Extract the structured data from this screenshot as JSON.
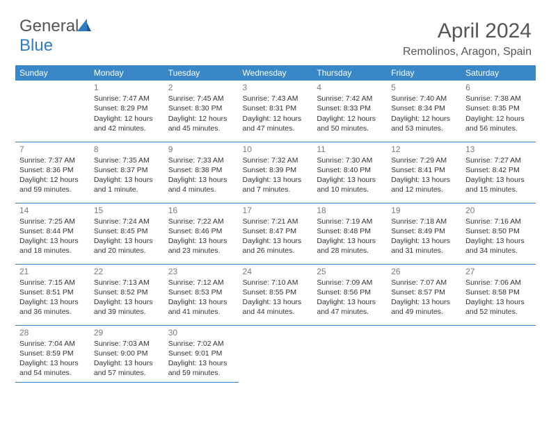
{
  "logo": {
    "text1": "General",
    "text2": "Blue"
  },
  "title": "April 2024",
  "subtitle": "Remolinos, Aragon, Spain",
  "header_bg": "#3a87c8",
  "border_color": "#2b7cc4",
  "days_of_week": [
    "Sunday",
    "Monday",
    "Tuesday",
    "Wednesday",
    "Thursday",
    "Friday",
    "Saturday"
  ],
  "weeks": [
    [
      null,
      {
        "n": "1",
        "a": "Sunrise: 7:47 AM",
        "b": "Sunset: 8:29 PM",
        "c": "Daylight: 12 hours and 42 minutes."
      },
      {
        "n": "2",
        "a": "Sunrise: 7:45 AM",
        "b": "Sunset: 8:30 PM",
        "c": "Daylight: 12 hours and 45 minutes."
      },
      {
        "n": "3",
        "a": "Sunrise: 7:43 AM",
        "b": "Sunset: 8:31 PM",
        "c": "Daylight: 12 hours and 47 minutes."
      },
      {
        "n": "4",
        "a": "Sunrise: 7:42 AM",
        "b": "Sunset: 8:33 PM",
        "c": "Daylight: 12 hours and 50 minutes."
      },
      {
        "n": "5",
        "a": "Sunrise: 7:40 AM",
        "b": "Sunset: 8:34 PM",
        "c": "Daylight: 12 hours and 53 minutes."
      },
      {
        "n": "6",
        "a": "Sunrise: 7:38 AM",
        "b": "Sunset: 8:35 PM",
        "c": "Daylight: 12 hours and 56 minutes."
      }
    ],
    [
      {
        "n": "7",
        "a": "Sunrise: 7:37 AM",
        "b": "Sunset: 8:36 PM",
        "c": "Daylight: 12 hours and 59 minutes."
      },
      {
        "n": "8",
        "a": "Sunrise: 7:35 AM",
        "b": "Sunset: 8:37 PM",
        "c": "Daylight: 13 hours and 1 minute."
      },
      {
        "n": "9",
        "a": "Sunrise: 7:33 AM",
        "b": "Sunset: 8:38 PM",
        "c": "Daylight: 13 hours and 4 minutes."
      },
      {
        "n": "10",
        "a": "Sunrise: 7:32 AM",
        "b": "Sunset: 8:39 PM",
        "c": "Daylight: 13 hours and 7 minutes."
      },
      {
        "n": "11",
        "a": "Sunrise: 7:30 AM",
        "b": "Sunset: 8:40 PM",
        "c": "Daylight: 13 hours and 10 minutes."
      },
      {
        "n": "12",
        "a": "Sunrise: 7:29 AM",
        "b": "Sunset: 8:41 PM",
        "c": "Daylight: 13 hours and 12 minutes."
      },
      {
        "n": "13",
        "a": "Sunrise: 7:27 AM",
        "b": "Sunset: 8:42 PM",
        "c": "Daylight: 13 hours and 15 minutes."
      }
    ],
    [
      {
        "n": "14",
        "a": "Sunrise: 7:25 AM",
        "b": "Sunset: 8:44 PM",
        "c": "Daylight: 13 hours and 18 minutes."
      },
      {
        "n": "15",
        "a": "Sunrise: 7:24 AM",
        "b": "Sunset: 8:45 PM",
        "c": "Daylight: 13 hours and 20 minutes."
      },
      {
        "n": "16",
        "a": "Sunrise: 7:22 AM",
        "b": "Sunset: 8:46 PM",
        "c": "Daylight: 13 hours and 23 minutes."
      },
      {
        "n": "17",
        "a": "Sunrise: 7:21 AM",
        "b": "Sunset: 8:47 PM",
        "c": "Daylight: 13 hours and 26 minutes."
      },
      {
        "n": "18",
        "a": "Sunrise: 7:19 AM",
        "b": "Sunset: 8:48 PM",
        "c": "Daylight: 13 hours and 28 minutes."
      },
      {
        "n": "19",
        "a": "Sunrise: 7:18 AM",
        "b": "Sunset: 8:49 PM",
        "c": "Daylight: 13 hours and 31 minutes."
      },
      {
        "n": "20",
        "a": "Sunrise: 7:16 AM",
        "b": "Sunset: 8:50 PM",
        "c": "Daylight: 13 hours and 34 minutes."
      }
    ],
    [
      {
        "n": "21",
        "a": "Sunrise: 7:15 AM",
        "b": "Sunset: 8:51 PM",
        "c": "Daylight: 13 hours and 36 minutes."
      },
      {
        "n": "22",
        "a": "Sunrise: 7:13 AM",
        "b": "Sunset: 8:52 PM",
        "c": "Daylight: 13 hours and 39 minutes."
      },
      {
        "n": "23",
        "a": "Sunrise: 7:12 AM",
        "b": "Sunset: 8:53 PM",
        "c": "Daylight: 13 hours and 41 minutes."
      },
      {
        "n": "24",
        "a": "Sunrise: 7:10 AM",
        "b": "Sunset: 8:55 PM",
        "c": "Daylight: 13 hours and 44 minutes."
      },
      {
        "n": "25",
        "a": "Sunrise: 7:09 AM",
        "b": "Sunset: 8:56 PM",
        "c": "Daylight: 13 hours and 47 minutes."
      },
      {
        "n": "26",
        "a": "Sunrise: 7:07 AM",
        "b": "Sunset: 8:57 PM",
        "c": "Daylight: 13 hours and 49 minutes."
      },
      {
        "n": "27",
        "a": "Sunrise: 7:06 AM",
        "b": "Sunset: 8:58 PM",
        "c": "Daylight: 13 hours and 52 minutes."
      }
    ],
    [
      {
        "n": "28",
        "a": "Sunrise: 7:04 AM",
        "b": "Sunset: 8:59 PM",
        "c": "Daylight: 13 hours and 54 minutes."
      },
      {
        "n": "29",
        "a": "Sunrise: 7:03 AM",
        "b": "Sunset: 9:00 PM",
        "c": "Daylight: 13 hours and 57 minutes."
      },
      {
        "n": "30",
        "a": "Sunrise: 7:02 AM",
        "b": "Sunset: 9:01 PM",
        "c": "Daylight: 13 hours and 59 minutes."
      },
      null,
      null,
      null,
      null
    ]
  ]
}
